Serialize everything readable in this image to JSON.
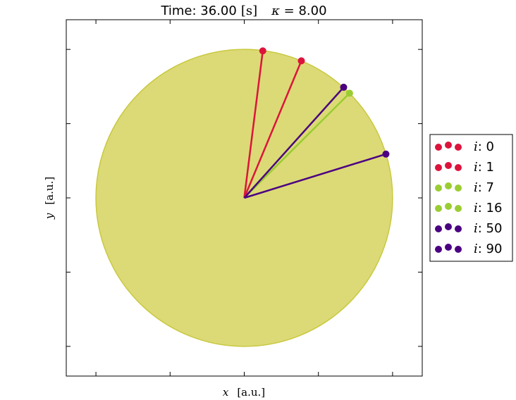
{
  "chart_data": {
    "type": "scatter",
    "title": {
      "time_prefix": "Time: ",
      "time_value": "36.00",
      "time_unit": "[s]",
      "kappa_symbol": "κ",
      "kappa_eq": " = ",
      "kappa_value": "8.00"
    },
    "xlabel": {
      "symbol": "x",
      "unit": "[a.u.]"
    },
    "ylabel": {
      "symbol": "y",
      "unit": "[a.u.]"
    },
    "xlim": [
      -1.2,
      1.2
    ],
    "ylim": [
      -1.2,
      1.2
    ],
    "grid": false,
    "legend_position": "right",
    "circle": {
      "radius": 1.0,
      "fill": "#d6d45e",
      "edge": "#c9c840",
      "alpha": 0.85
    },
    "series": [
      {
        "name_symbol": "i",
        "name_value": "0",
        "color": "#dc143c",
        "point": [
          0.125,
          0.99
        ]
      },
      {
        "name_symbol": "i",
        "name_value": "1",
        "color": "#dc143c",
        "point": [
          0.385,
          0.923
        ]
      },
      {
        "name_symbol": "i",
        "name_value": "7",
        "color": "#9acd32",
        "point": [
          0.71,
          0.705
        ]
      },
      {
        "name_symbol": "i",
        "name_value": "16",
        "color": "#9acd32",
        "point": [
          0.67,
          0.745
        ]
      },
      {
        "name_symbol": "i",
        "name_value": "50",
        "color": "#4b0082",
        "point": [
          0.67,
          0.745
        ]
      },
      {
        "name_symbol": "i",
        "name_value": "90",
        "color": "#4b0082",
        "point": [
          0.955,
          0.295
        ]
      }
    ]
  }
}
